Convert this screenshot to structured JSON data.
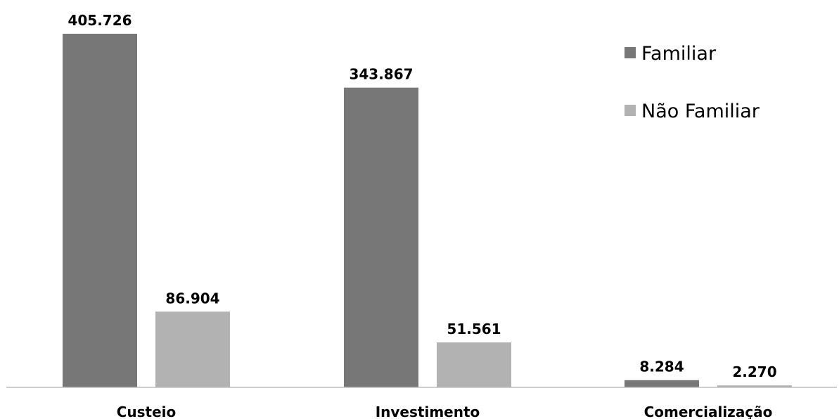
{
  "chart_data": {
    "type": "bar",
    "title": "",
    "xlabel": "",
    "ylabel": "",
    "categories": [
      "Custeio",
      "Investimento",
      "Comercialização"
    ],
    "series": [
      {
        "name": "Familiar",
        "values": [
          405726,
          343867,
          8284
        ],
        "labels": [
          "405.726",
          "343.867",
          "8.284"
        ],
        "color": "#777777"
      },
      {
        "name": "Não Familiar",
        "values": [
          86904,
          51561,
          2270
        ],
        "labels": [
          "86.904",
          "51.561",
          "2.270"
        ],
        "color": "#b2b2b2"
      }
    ],
    "ylim": [
      0,
      405726
    ],
    "grid": false,
    "legend_position": "top-right",
    "axis_color": "#bfbfbf"
  }
}
